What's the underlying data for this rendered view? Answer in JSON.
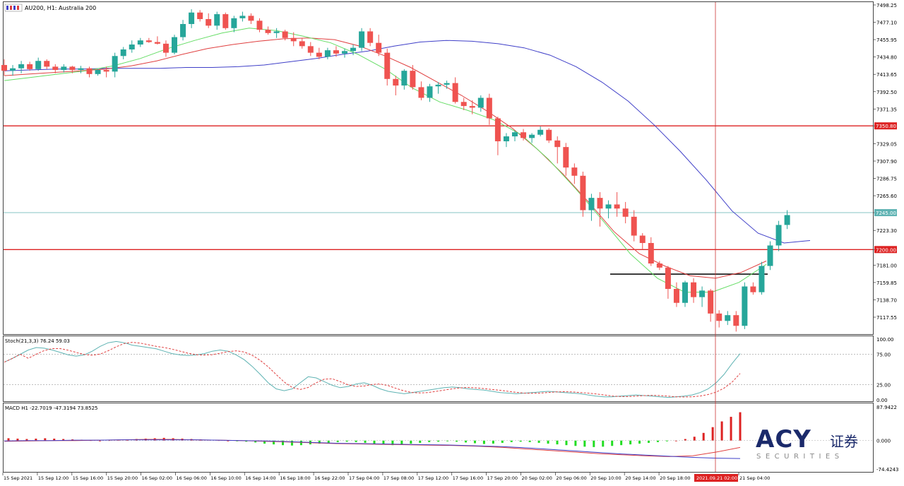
{
  "header": {
    "title": "AU200, H1:  Australia 200"
  },
  "colors": {
    "bull": "#26a69a",
    "bear": "#ef5350",
    "ma_blue": "#3f3fc8",
    "ma_red": "#e04040",
    "ma_green": "#66dd66",
    "level_red": "#dd2222",
    "level_teal": "#5fb3b3",
    "stoch_main": "#5fb3b3",
    "stoch_signal": "#e04040",
    "macd_hist_up": "#dd2222",
    "macd_hist_down": "#22dd22",
    "macd_line": "#3f3fc8",
    "macd_signal": "#e04040",
    "cursor": "#cc3333"
  },
  "price_axis": {
    "labels": [
      "7498.25",
      "7477.10",
      "7455.95",
      "7434.80",
      "7413.65",
      "7392.50",
      "7371.35",
      "7350.80",
      "7329.05",
      "7307.90",
      "7286.75",
      "7265.60",
      "7245.00",
      "7223.30",
      "7200.00",
      "7181.00",
      "7159.85",
      "7138.70",
      "7117.55"
    ],
    "highlighted": [
      {
        "label": "7350.80",
        "color": "#dd2222"
      },
      {
        "label": "7245.00",
        "color": "#5fb3b3"
      },
      {
        "label": "7200.00",
        "color": "#dd2222"
      }
    ]
  },
  "stoch": {
    "title": "Stoch(21,3,3) 76.24 59.03",
    "axis": [
      "100.00",
      "75.00",
      "25.00",
      "0.00"
    ]
  },
  "macd": {
    "title": "MACD H1 -22.7019 -47.3194 73.8525",
    "axis": [
      "87.9422",
      "0.000",
      "-74.4243"
    ]
  },
  "time_axis": {
    "labels": [
      "15 Sep 2021",
      "15 Sep 12:00",
      "15 Sep 16:00",
      "15 Sep 20:00",
      "16 Sep 02:00",
      "16 Sep 06:00",
      "16 Sep 10:00",
      "16 Sep 14:00",
      "16 Sep 18:00",
      "16 Sep 22:00",
      "17 Sep 04:00",
      "17 Sep 08:00",
      "17 Sep 12:00",
      "17 Sep 16:00",
      "17 Sep 20:00",
      "20 Sep 02:00",
      "20 Sep 06:00",
      "20 Sep 10:00",
      "20 Sep 14:00",
      "20 Sep 18:00",
      "21 Sep 04:00"
    ],
    "cursor_label": "2021.09.21 02:00"
  },
  "logo": {
    "brand": "ACY",
    "cn": "证券",
    "sub": "SECURITIES"
  },
  "chart_data": {
    "type": "candlestick",
    "title": "AU200, H1:  Australia 200",
    "ylim": [
      7100,
      7500
    ],
    "levels": [
      {
        "price": 7350.8,
        "color": "red"
      },
      {
        "price": 7245.0,
        "color": "teal"
      },
      {
        "price": 7200.0,
        "color": "red"
      },
      {
        "price": 7170.0,
        "color": "black",
        "kind": "support segment"
      }
    ],
    "candles": [
      [
        7425,
        7432,
        7412,
        7418
      ],
      [
        7418,
        7425,
        7412,
        7421
      ],
      [
        7421,
        7430,
        7415,
        7426
      ],
      [
        7426,
        7429,
        7418,
        7420
      ],
      [
        7420,
        7434,
        7418,
        7430
      ],
      [
        7430,
        7432,
        7420,
        7423
      ],
      [
        7423,
        7426,
        7415,
        7419
      ],
      [
        7419,
        7426,
        7416,
        7423
      ],
      [
        7423,
        7424,
        7415,
        7419
      ],
      [
        7419,
        7424,
        7415,
        7421
      ],
      [
        7421,
        7423,
        7410,
        7414
      ],
      [
        7414,
        7420,
        7412,
        7419
      ],
      [
        7419,
        7423,
        7410,
        7417
      ],
      [
        7417,
        7440,
        7410,
        7436
      ],
      [
        7436,
        7447,
        7432,
        7444
      ],
      [
        7444,
        7455,
        7440,
        7450
      ],
      [
        7450,
        7458,
        7447,
        7455
      ],
      [
        7455,
        7458,
        7452,
        7453
      ],
      [
        7453,
        7460,
        7450,
        7451
      ],
      [
        7451,
        7455,
        7435,
        7440
      ],
      [
        7440,
        7462,
        7438,
        7459
      ],
      [
        7459,
        7480,
        7455,
        7475
      ],
      [
        7475,
        7493,
        7470,
        7489
      ],
      [
        7489,
        7492,
        7478,
        7481
      ],
      [
        7481,
        7488,
        7470,
        7473
      ],
      [
        7473,
        7490,
        7468,
        7487
      ],
      [
        7487,
        7489,
        7468,
        7470
      ],
      [
        7470,
        7485,
        7465,
        7482
      ],
      [
        7482,
        7490,
        7478,
        7485
      ],
      [
        7485,
        7488,
        7475,
        7479
      ],
      [
        7479,
        7482,
        7465,
        7468
      ],
      [
        7468,
        7472,
        7462,
        7464
      ],
      [
        7464,
        7470,
        7458,
        7466
      ],
      [
        7466,
        7468,
        7455,
        7458
      ],
      [
        7458,
        7465,
        7448,
        7454
      ],
      [
        7454,
        7458,
        7445,
        7448
      ],
      [
        7448,
        7453,
        7436,
        7440
      ],
      [
        7440,
        7446,
        7432,
        7435
      ],
      [
        7435,
        7446,
        7432,
        7443
      ],
      [
        7443,
        7448,
        7435,
        7439
      ],
      [
        7439,
        7445,
        7434,
        7442
      ],
      [
        7442,
        7450,
        7437,
        7446
      ],
      [
        7446,
        7470,
        7442,
        7466
      ],
      [
        7466,
        7470,
        7448,
        7452
      ],
      [
        7452,
        7462,
        7436,
        7440
      ],
      [
        7440,
        7445,
        7400,
        7408
      ],
      [
        7408,
        7412,
        7388,
        7400
      ],
      [
        7400,
        7420,
        7395,
        7418
      ],
      [
        7418,
        7425,
        7395,
        7398
      ],
      [
        7398,
        7405,
        7382,
        7385
      ],
      [
        7385,
        7402,
        7380,
        7399
      ],
      [
        7399,
        7404,
        7390,
        7401
      ],
      [
        7401,
        7406,
        7396,
        7403
      ],
      [
        7403,
        7410,
        7378,
        7380
      ],
      [
        7380,
        7385,
        7370,
        7375
      ],
      [
        7375,
        7382,
        7365,
        7373
      ],
      [
        7373,
        7388,
        7368,
        7385
      ],
      [
        7385,
        7390,
        7352,
        7360
      ],
      [
        7360,
        7362,
        7315,
        7332
      ],
      [
        7332,
        7342,
        7325,
        7338
      ],
      [
        7338,
        7345,
        7332,
        7343
      ],
      [
        7343,
        7347,
        7333,
        7336
      ],
      [
        7336,
        7342,
        7330,
        7340
      ],
      [
        7340,
        7350,
        7338,
        7346
      ],
      [
        7346,
        7348,
        7330,
        7333
      ],
      [
        7333,
        7338,
        7305,
        7325
      ],
      [
        7325,
        7330,
        7290,
        7300
      ],
      [
        7300,
        7305,
        7280,
        7290
      ],
      [
        7290,
        7295,
        7240,
        7248
      ],
      [
        7248,
        7268,
        7235,
        7263
      ],
      [
        7263,
        7270,
        7228,
        7250
      ],
      [
        7250,
        7260,
        7238,
        7255
      ],
      [
        7255,
        7270,
        7240,
        7250
      ],
      [
        7250,
        7258,
        7232,
        7240
      ],
      [
        7240,
        7248,
        7210,
        7217
      ],
      [
        7217,
        7220,
        7200,
        7208
      ],
      [
        7208,
        7215,
        7180,
        7183
      ],
      [
        7183,
        7186,
        7175,
        7178
      ],
      [
        7178,
        7180,
        7140,
        7152
      ],
      [
        7152,
        7160,
        7130,
        7135
      ],
      [
        7135,
        7162,
        7130,
        7160
      ],
      [
        7160,
        7165,
        7135,
        7142
      ],
      [
        7142,
        7155,
        7130,
        7150
      ],
      [
        7150,
        7152,
        7112,
        7122
      ],
      [
        7122,
        7126,
        7105,
        7113
      ],
      [
        7113,
        7125,
        7108,
        7120
      ],
      [
        7120,
        7125,
        7100,
        7107
      ],
      [
        7107,
        7160,
        7103,
        7155
      ],
      [
        7155,
        7160,
        7145,
        7148
      ],
      [
        7148,
        7185,
        7145,
        7180
      ],
      [
        7180,
        7210,
        7175,
        7205
      ],
      [
        7205,
        7235,
        7198,
        7230
      ],
      [
        7230,
        7248,
        7225,
        7242
      ]
    ],
    "moving_averages": [
      {
        "color": "blue",
        "values": [
          7418,
          7419,
          7420,
          7420,
          7421,
          7421,
          7421,
          7422,
          7422,
          7423,
          7425,
          7429,
          7433,
          7438,
          7442,
          7448,
          7453,
          7455,
          7454,
          7451,
          7446,
          7437,
          7423,
          7404,
          7381,
          7352,
          7320,
          7285,
          7247,
          7220,
          7208,
          7211
        ]
      },
      {
        "color": "red",
        "values": [
          7412,
          7414,
          7416,
          7418,
          7420,
          7424,
          7430,
          7438,
          7445,
          7450,
          7454,
          7457,
          7458,
          7456,
          7448,
          7436,
          7422,
          7405,
          7388,
          7369,
          7348,
          7322,
          7292,
          7258,
          7222,
          7195,
          7180,
          7168,
          7165,
          7172,
          7186
        ]
      },
      {
        "color": "green",
        "values": [
          7406,
          7410,
          7414,
          7418,
          7424,
          7433,
          7445,
          7455,
          7464,
          7470,
          7467,
          7460,
          7452,
          7438,
          7420,
          7397,
          7380,
          7370,
          7358,
          7340,
          7310,
          7274,
          7235,
          7195,
          7165,
          7148,
          7148,
          7160,
          7182
        ]
      }
    ],
    "stochastic": {
      "main": 76.24,
      "signal": 59.03,
      "levels": [
        75,
        25
      ]
    },
    "macd": {
      "macd": -22.7019,
      "signal": -47.3194,
      "histogram": 73.8525
    }
  }
}
